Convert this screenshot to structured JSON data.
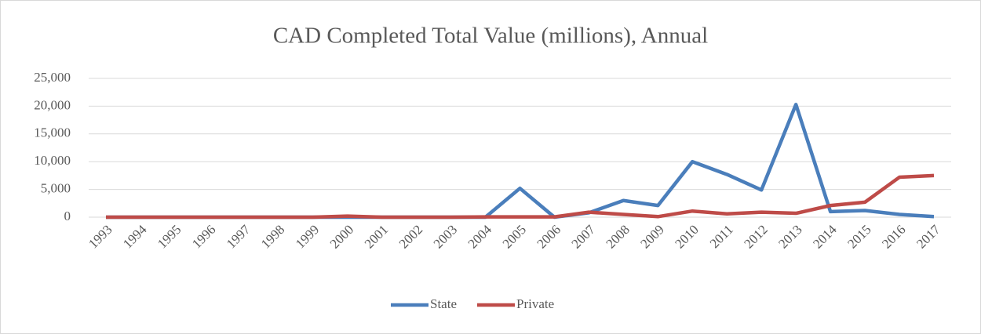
{
  "chart_data": {
    "type": "line",
    "title": "CAD Completed Total Value (millions), Annual",
    "categories": [
      "1993",
      "1994",
      "1995",
      "1996",
      "1997",
      "1998",
      "1999",
      "2000",
      "2001",
      "2002",
      "2003",
      "2004",
      "2005",
      "2006",
      "2007",
      "2008",
      "2009",
      "2010",
      "2011",
      "2012",
      "2013",
      "2014",
      "2015",
      "2016",
      "2017"
    ],
    "series": [
      {
        "name": "State",
        "color": "#4a7ebb",
        "values": [
          0,
          0,
          0,
          0,
          0,
          0,
          0,
          0,
          0,
          0,
          0,
          0,
          5200,
          0,
          800,
          3000,
          2100,
          10000,
          7700,
          4900,
          20300,
          1000,
          1200,
          500,
          100
        ]
      },
      {
        "name": "Private",
        "color": "#be4b48",
        "values": [
          0,
          0,
          0,
          0,
          0,
          0,
          0,
          200,
          0,
          0,
          0,
          50,
          50,
          50,
          900,
          500,
          100,
          1100,
          600,
          900,
          700,
          2100,
          2700,
          7200,
          7500
        ]
      }
    ],
    "ylim": [
      0,
      25000
    ],
    "yticks": [
      0,
      {
        "value": 5000,
        "label": "5,000"
      },
      {
        "value": 10000,
        "label": "10,000"
      },
      {
        "value": 15000,
        "label": "15,000"
      },
      {
        "value": 20000,
        "label": "20,000"
      },
      {
        "value": 25000,
        "label": "25,000"
      }
    ],
    "grid": true,
    "legend": "bottom"
  }
}
